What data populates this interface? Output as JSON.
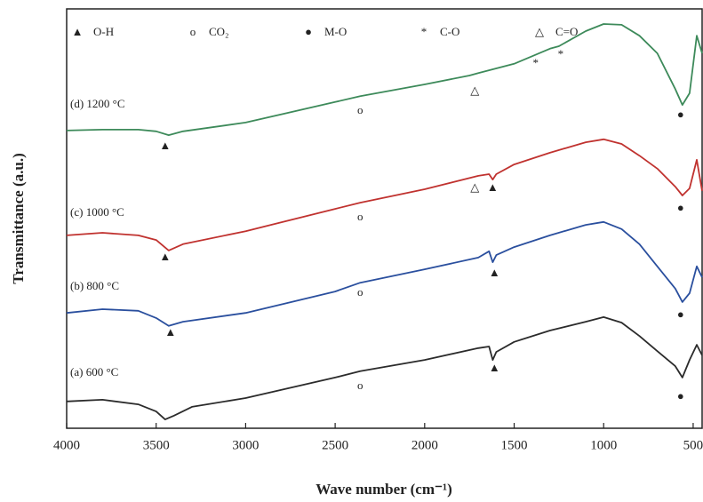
{
  "chart_data": {
    "type": "line",
    "xlabel": "Wave number (cm⁻¹)",
    "ylabel": "Transmittance (a.u.)",
    "xlim": [
      4000,
      450
    ],
    "xticks": [
      4000,
      3500,
      3000,
      2500,
      2000,
      1500,
      1000,
      500
    ],
    "ylim": [
      0,
      100
    ],
    "legend": [
      {
        "symbol": "▲",
        "label": "O-H"
      },
      {
        "symbol": "o",
        "label": "CO₂"
      },
      {
        "symbol": "●",
        "label": "M-O"
      },
      {
        "symbol": "*",
        "label": "C-O"
      },
      {
        "symbol": "△",
        "label": "C=O"
      }
    ],
    "series": [
      {
        "name": "(a) 600 °C",
        "color": "#2b2b2b",
        "x": [
          4000,
          3800,
          3600,
          3500,
          3450,
          3400,
          3300,
          3000,
          2500,
          2360,
          2000,
          1700,
          1640,
          1620,
          1600,
          1500,
          1300,
          1100,
          1000,
          900,
          800,
          700,
          600,
          560,
          520,
          480,
          450
        ],
        "values": [
          6.4,
          6.8,
          5.7,
          4.0,
          2.1,
          3.0,
          5.1,
          7.2,
          12.1,
          13.6,
          16.3,
          19.1,
          19.5,
          16.3,
          18.2,
          20.6,
          23.3,
          25.4,
          26.5,
          25.2,
          22.0,
          18.4,
          14.8,
          12.1,
          16.3,
          19.9,
          17.4
        ]
      },
      {
        "name": "(b) 800 °C",
        "color": "#2a4f9e",
        "x": [
          4000,
          3800,
          3600,
          3500,
          3430,
          3350,
          3000,
          2500,
          2360,
          2000,
          1700,
          1640,
          1620,
          1600,
          1500,
          1300,
          1100,
          1000,
          900,
          800,
          700,
          600,
          560,
          520,
          480,
          450
        ],
        "values": [
          27.5,
          28.4,
          28.0,
          26.3,
          24.4,
          25.4,
          27.5,
          32.6,
          34.7,
          37.9,
          40.7,
          42.2,
          39.6,
          41.3,
          43.2,
          46.0,
          48.5,
          49.2,
          47.5,
          43.9,
          38.6,
          33.3,
          30.1,
          32.2,
          38.6,
          36.0
        ]
      },
      {
        "name": "(c) 1000 °C",
        "color": "#c0322f",
        "x": [
          4000,
          3800,
          3600,
          3500,
          3430,
          3350,
          3000,
          2500,
          2360,
          2000,
          1700,
          1640,
          1620,
          1600,
          1500,
          1300,
          1100,
          1000,
          900,
          800,
          700,
          600,
          560,
          520,
          480,
          450
        ],
        "values": [
          46.0,
          46.6,
          46.0,
          44.9,
          42.4,
          43.9,
          47.0,
          52.3,
          53.8,
          57.0,
          60.2,
          60.6,
          59.3,
          60.6,
          62.9,
          65.7,
          68.2,
          68.9,
          67.8,
          65.0,
          61.9,
          57.6,
          55.5,
          57.2,
          64.0,
          56.6
        ]
      },
      {
        "name": "(d) 1200 °C",
        "color": "#3d8a5a",
        "x": [
          4000,
          3800,
          3600,
          3500,
          3430,
          3350,
          3000,
          2500,
          2360,
          2000,
          1750,
          1700,
          1500,
          1300,
          1250,
          1100,
          1000,
          900,
          800,
          700,
          600,
          560,
          520,
          480,
          450
        ],
        "values": [
          71.0,
          71.2,
          71.2,
          70.8,
          69.9,
          70.8,
          72.9,
          77.8,
          79.2,
          82.0,
          84.1,
          84.7,
          86.9,
          90.5,
          91.1,
          94.7,
          96.4,
          96.2,
          93.6,
          89.4,
          80.9,
          77.1,
          79.9,
          93.6,
          89.4
        ]
      }
    ],
    "annotations": [
      {
        "text": "(d) 1200 °C",
        "x": 3980,
        "y": 77.1
      },
      {
        "text": "(c) 1000 °C",
        "x": 3980,
        "y": 51.3
      },
      {
        "text": "(b) 800 °C",
        "x": 3980,
        "y": 33.7
      },
      {
        "text": "(a) 600 °C",
        "x": 3980,
        "y": 13.1
      },
      {
        "text": "▲",
        "x": 3450,
        "y": 67.2
      },
      {
        "text": "▲",
        "x": 3450,
        "y": 40.7
      },
      {
        "text": "▲",
        "x": 3420,
        "y": 22.7
      },
      {
        "text": "▲",
        "x": 1610,
        "y": 14.2
      },
      {
        "text": "▲",
        "x": 1610,
        "y": 36.9
      },
      {
        "text": "▲",
        "x": 1620,
        "y": 57.2
      },
      {
        "text": "o",
        "x": 2360,
        "y": 75.6
      },
      {
        "text": "o",
        "x": 2360,
        "y": 50.2
      },
      {
        "text": "o",
        "x": 2360,
        "y": 32.2
      },
      {
        "text": "o",
        "x": 2360,
        "y": 10.0
      },
      {
        "text": "●",
        "x": 570,
        "y": 74.6
      },
      {
        "text": "●",
        "x": 570,
        "y": 52.3
      },
      {
        "text": "●",
        "x": 570,
        "y": 26.9
      },
      {
        "text": "●",
        "x": 570,
        "y": 7.4
      },
      {
        "text": "*",
        "x": 1380,
        "y": 86.9
      },
      {
        "text": "*",
        "x": 1240,
        "y": 89.0
      },
      {
        "text": "△",
        "x": 1720,
        "y": 80.3
      },
      {
        "text": "△",
        "x": 1720,
        "y": 57.2
      }
    ]
  }
}
